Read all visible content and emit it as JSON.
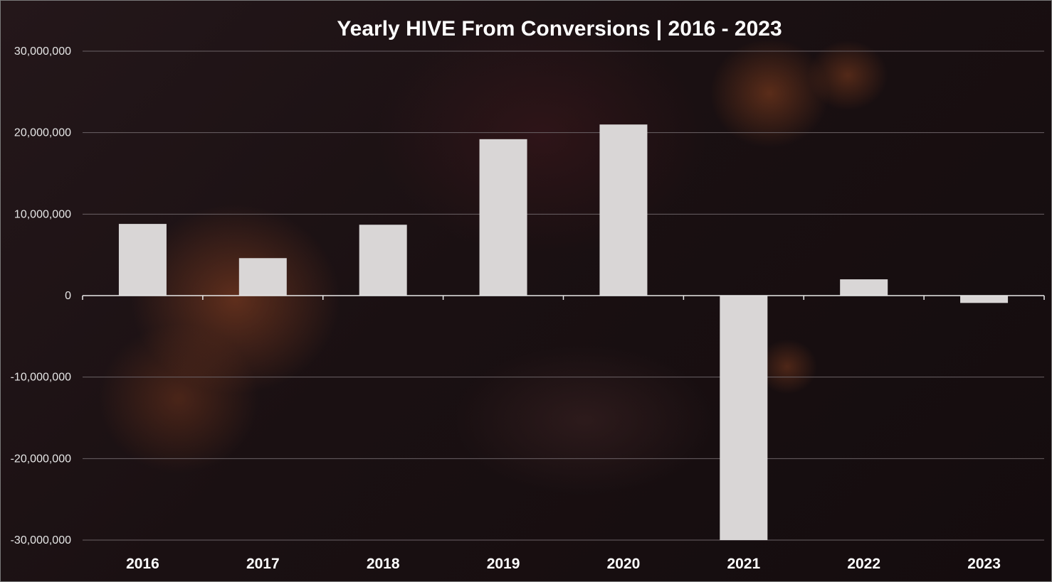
{
  "chart_data": {
    "type": "bar",
    "title": "Yearly HIVE From Conversions | 2016 - 2023",
    "xlabel": "",
    "ylabel": "",
    "categories": [
      "2016",
      "2017",
      "2018",
      "2019",
      "2020",
      "2021",
      "2022",
      "2023"
    ],
    "values": [
      8800000,
      4600000,
      8700000,
      19200000,
      21000000,
      -30000000,
      2000000,
      -900000
    ],
    "ylim": [
      -30000000,
      30000000
    ],
    "yticks": [
      30000000,
      20000000,
      10000000,
      0,
      -10000000,
      -20000000,
      -30000000
    ],
    "ytick_labels": [
      "30,000,000",
      "20,000,000",
      "10,000,000",
      "0",
      "-10,000,000",
      "-20,000,000",
      "-30,000,000"
    ],
    "grid": true,
    "legend": "none",
    "colors": {
      "bar": "#d9d6d6",
      "text": "#ffffff",
      "grid": "#6b6266",
      "background": "#1a1012"
    }
  }
}
